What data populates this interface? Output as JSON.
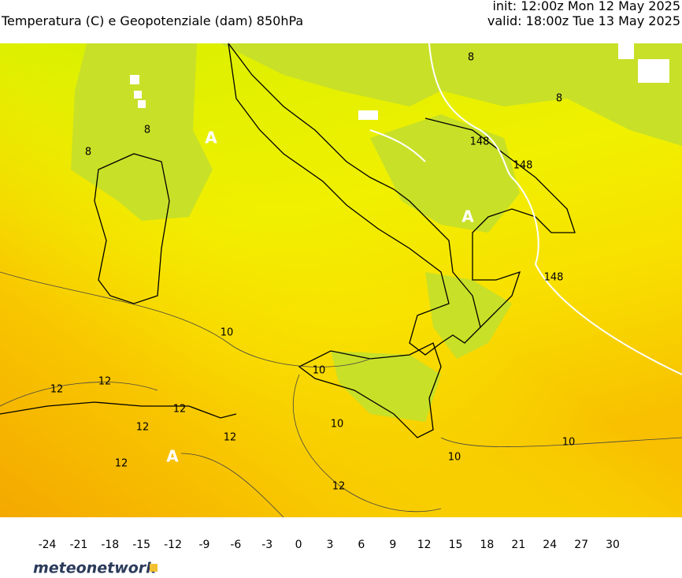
{
  "header": {
    "title": "Temperatura (C) e Geopotenziale (dam) 850hPa",
    "init": "init: 12:00z Mon 12 May 2025",
    "valid": "valid: 18:00z Tue 13 May 2025"
  },
  "map": {
    "labels": [
      "A",
      "A",
      "A",
      "10",
      "10",
      "10",
      "10",
      "10",
      "12",
      "12",
      "12",
      "12",
      "12",
      "12",
      "12",
      "148",
      "148",
      "148",
      "8",
      "8",
      "8",
      "8"
    ]
  },
  "colorbar": {
    "ticks": [
      -24,
      -21,
      -18,
      -15,
      -12,
      -9,
      -6,
      -3,
      0,
      3,
      6,
      9,
      12,
      15,
      18,
      21,
      24,
      27,
      30
    ]
  },
  "footer": {
    "logo": "meteonetwork"
  }
}
